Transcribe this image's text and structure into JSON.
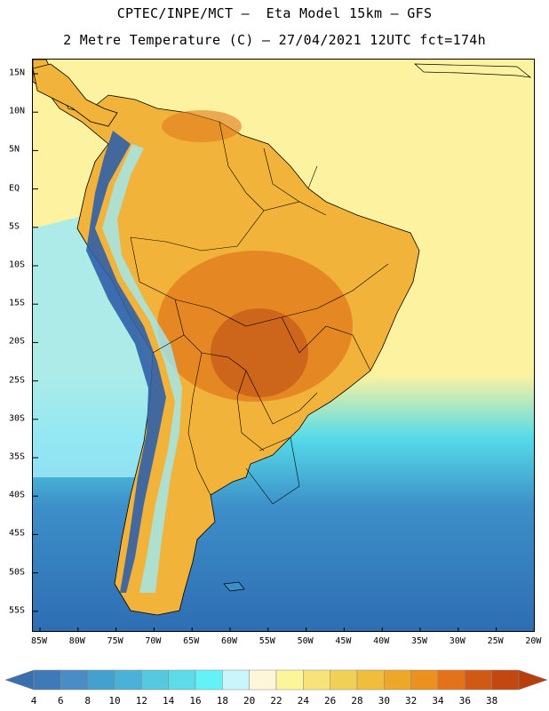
{
  "title": {
    "line1": "CPTEC/INPE/MCT –  Eta Model 15km – GFS",
    "line2": "2 Metre Temperature (C) – 27/04/2021 12UTC fct=174h"
  },
  "map": {
    "lat_labels": [
      "15N",
      "10N",
      "5N",
      "EQ",
      "5S",
      "10S",
      "15S",
      "20S",
      "25S",
      "30S",
      "35S",
      "40S",
      "45S",
      "50S",
      "55S"
    ],
    "lon_labels": [
      "85W",
      "80W",
      "75W",
      "70W",
      "65W",
      "60W",
      "55W",
      "50W",
      "45W",
      "40W",
      "35W",
      "30W",
      "25W",
      "20W"
    ],
    "colors": {
      "ocean_south_deep": "#2e6db3",
      "ocean_south_mid": "#3d8fc9",
      "ocean_cyan": "#55dbe8",
      "ocean_light": "#9eeaf5",
      "ocean_warm": "#fdf2a0",
      "land_warm": "#f2b33a",
      "land_hot": "#e07a1e",
      "land_hottest": "#c45a18",
      "andes": "#2f5fa8"
    }
  },
  "colorbar": {
    "labels": [
      "4",
      "6",
      "8",
      "10",
      "12",
      "14",
      "16",
      "18",
      "20",
      "22",
      "24",
      "26",
      "28",
      "30",
      "32",
      "34",
      "36",
      "38"
    ],
    "colors": [
      "#3f7ab8",
      "#4a8cc6",
      "#44a0cf",
      "#4ab2d8",
      "#56c8e0",
      "#5ddbe8",
      "#63f3f7",
      "#c9f6fb",
      "#fdf6d9",
      "#fdf59a",
      "#f8e27a",
      "#f2cf55",
      "#f0bd3c",
      "#eea829",
      "#ec901f",
      "#e4721a",
      "#d05a14",
      "#c24710"
    ],
    "low_color": "#3c6fae",
    "high_color": "#b83e0e"
  }
}
